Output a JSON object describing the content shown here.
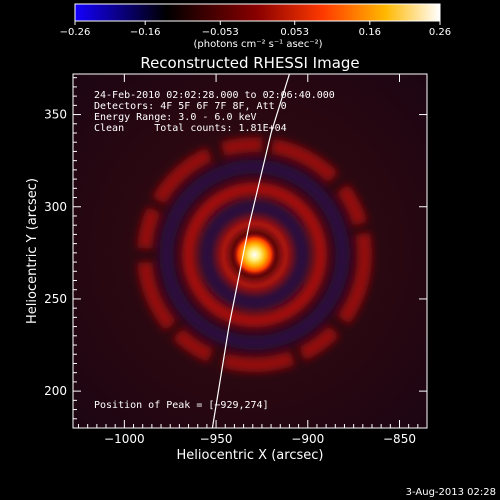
{
  "chart_data": {
    "type": "heatmap",
    "title": "Reconstructed RHESSI Image",
    "xlabel": "Heliocentric X (arcsec)",
    "ylabel": "Heliocentric Y (arcsec)",
    "xlim": [
      -1028,
      -835
    ],
    "ylim": [
      180,
      372
    ],
    "x_ticks": [
      -1000,
      -950,
      -900,
      -850
    ],
    "x_tick_labels": [
      "−1000",
      "−950",
      "−900",
      "−850"
    ],
    "y_ticks": [
      200,
      250,
      300,
      350
    ],
    "y_tick_labels": [
      "200",
      "250",
      "300",
      "350"
    ],
    "colorbar": {
      "range": [
        -0.26,
        0.26
      ],
      "ticks": [
        -0.26,
        -0.16,
        -0.053,
        0.053,
        0.16,
        0.26
      ],
      "tick_labels": [
        "−0.26",
        "−0.16",
        "−0.053",
        "0.053",
        "0.16",
        "0.26"
      ],
      "units": "(photons cm⁻² s⁻¹ asec⁻²)",
      "colors": [
        "#1400ff",
        "#000000",
        "#8a0000",
        "#ff3a00",
        "#ffb800",
        "#ffffff"
      ]
    },
    "peak": {
      "x": -929,
      "y": 274
    },
    "rings_radius_arcsec": [
      17,
      36,
      60
    ],
    "limb_curve": [
      [
        -952,
        180
      ],
      [
        -943,
        235
      ],
      [
        -932,
        290
      ],
      [
        -920,
        340
      ],
      [
        -910,
        372
      ]
    ],
    "annotations": [
      "24-Feb-2010 02:02:28.000 to 02:06:40.000",
      "Detectors: 4F 5F 6F 7F 8F, Att 0",
      "Energy Range: 3.0 - 6.0 keV",
      "Clean     Total counts: 1.81E+04",
      "Position of Peak = [−929,274]"
    ],
    "date_stamp": "3-Aug-2013 02:28"
  }
}
